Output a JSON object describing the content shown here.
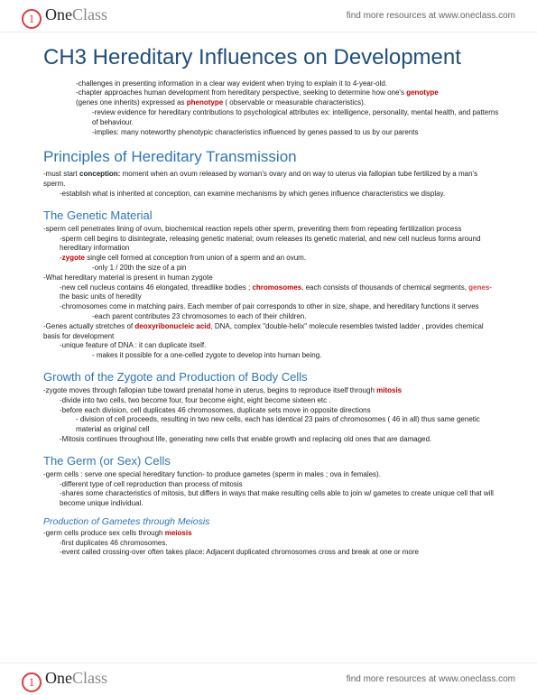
{
  "brand": {
    "one": "One",
    "class": "Class",
    "icon": "1"
  },
  "tagline": "find more resources at www.oneclass.com",
  "title": "CH3 Hereditary Influences on Development",
  "intro": [
    "-challenges in presenting  information in a clear way evident when trying to explain it to 4-year-old.",
    "-chapter approaches human development from hereditary perspective, seeking to determine how one's ",
    "(genes one inherits) expressed as ",
    " ( observable or measurable characteristics).",
    "-review evidence for hereditary contributions to psychological attributes ex: intelligence, personality, mental health, and patterns of behaviour.",
    "-implies:  many noteworthy phenotypic characteristics influenced by genes passed to us by our parents"
  ],
  "terms": {
    "genotype": "genotype",
    "phenotype": "phenotype",
    "zygote": "zygote",
    "chromosomes": "chromosomes",
    "genes": "genes",
    "dna": "deoxyribonucleic acid",
    "mitosis": "mitosis",
    "meiosis": "meiosis",
    "conception": "conception:"
  },
  "h2_principles": "Principles of Hereditary Transmission",
  "principles": [
    "-must start ",
    " moment when an ovum released by woman's ovary and on way to uterus via fallopian tube fertilized by a man's sperm.",
    "-establish what is inherited at conception, can examine mechanisms by which genes influence characteristics we display."
  ],
  "h3_genetic": "The Genetic Material",
  "genetic": {
    "l1": "-sperm cell penetrates lining of ovum, biochemical reaction repels other sperm, preventing them from repeating fertilization process",
    "l2": "-sperm cell begins to disintegrate, releasing genetic material;  ovum releases its genetic material, and new cell nucleus forms around hereditary information",
    "l3a": "-",
    "l3b": " single cell formed at conception from union of a sperm and an ovum.",
    "l4": "-only 1 / 20th the size of a pin",
    "l5": "-What hereditary material is present in human zygote",
    "l6a": "-new cell nucleus contains 46 elongated, threadlike bodies ; ",
    "l6b": ", each consists of thousands of chemical segments, ",
    "l6c": "-the basic units of heredity",
    "l7": "-chromosomes come in matching pairs. Each member of pair corresponds to other in size, shape, and hereditary functions it serves",
    "l8": "-each parent contributes 23 chromosomes to each of their children.",
    "l9a": "-Genes actually stretches of ",
    "l9b": ", DNA, complex \"double-helix\" molecule resembles twisted ladder , provides chemical basis for development",
    "l10": "-unique feature of DNA : it can duplicate itself.",
    "l11": "- makes it possible for a one-celled zygote to develop into human being."
  },
  "h3_growth": "Growth of the Zygote and Production of Body Cells",
  "growth": {
    "l1a": "-zygote moves through fallopian tube toward prenatal home in  uterus, begins to reproduce itself through ",
    "l2": "-divide into two cells, two become four, four become eight, eight become sixteen etc .",
    "l3": "-before each division, cell duplicates 46 chromosomes,  duplicate sets move in opposite directions",
    "l4": "- division of cell proceeds, resulting in two new cells, each has identical 23 pairs of chromosomes ( 46 in all)  thus same genetic material as original cell",
    "l5": "-Mitosis continues throughout life, generating new cells that enable growth and replacing old ones that are damaged."
  },
  "h3_germ": "The Germ (or Sex) Cells",
  "germ": {
    "l1": "-germ cells : serve one special hereditary function- to produce gametes (sperm in males ; ova in females).",
    "l2": "-different type of cell reproduction than  process of mitosis",
    "l3": "-shares some characteristics of mitosis, but differs in ways that make resulting cells able to join w/ gametes to create unique cell that will become unique individual."
  },
  "h4_meiosis": "Production of Gametes through Meiosis",
  "meiosis_sec": {
    "l1a": "-germ cells produce sex cells through ",
    "l2": "-first duplicates 46 chromosomes.",
    "l3": "-event called crossing-over often takes place: Adjacent duplicated chromosomes cross and break at one or more"
  },
  "colors": {
    "h1": "#1f4e79",
    "h2": "#2e74b5",
    "term": "#c00000",
    "brand_red": "#e03a3e"
  },
  "typography": {
    "h1_size": 24,
    "h2_size": 17,
    "h3_size": 13,
    "h4_size": 10.5,
    "body_size": 8
  }
}
